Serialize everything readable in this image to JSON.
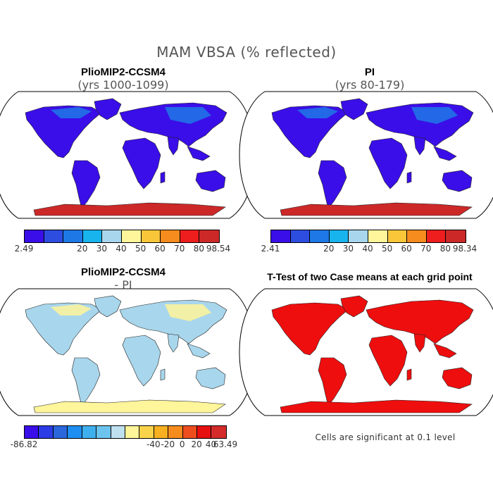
{
  "main_title": "MAM VBSA (% reflected)",
  "panels": {
    "top_left": {
      "title": "PlioMIP2-CCSM4",
      "subtitle": "(yrs 1000-1099)"
    },
    "top_right": {
      "title": "PI",
      "subtitle": "(yrs 80-179)"
    },
    "bottom_left": {
      "title": "PlioMIP2-CCSM4",
      "subtitle": "- PI"
    },
    "bottom_right": {
      "title": "T-Test of two Case means at each grid point",
      "footnote": "Cells are significant at 0.1 level"
    }
  },
  "colorbars": {
    "top_left": {
      "colors": [
        "#3a0ee8",
        "#2d4de0",
        "#1e78e6",
        "#18b4ee",
        "#a8d6ec",
        "#fff59a",
        "#f9c63a",
        "#f68c1e",
        "#ee1e1e",
        "#cc2828"
      ],
      "labels": [
        "2.49",
        "20",
        "30",
        "40",
        "50",
        "60",
        "70",
        "80",
        "98.54"
      ]
    },
    "top_right": {
      "colors": [
        "#3a0ee8",
        "#2d4de0",
        "#1e78e6",
        "#18b4ee",
        "#a8d6ec",
        "#fff59a",
        "#f9c63a",
        "#f68c1e",
        "#ee1e1e",
        "#cc2828"
      ],
      "labels": [
        "2.41",
        "20",
        "30",
        "40",
        "50",
        "60",
        "70",
        "80",
        "98.34"
      ]
    },
    "bottom_left": {
      "colors": [
        "#3a0ee8",
        "#2b3be6",
        "#2b66dc",
        "#1e8ef0",
        "#3fb0ee",
        "#6cc4ee",
        "#bfe0ee",
        "#fff59a",
        "#f9d44a",
        "#f8b020",
        "#f68c1e",
        "#ee4e1e",
        "#e61010",
        "#d42a2a"
      ],
      "labels": [
        "-86.82",
        "-40",
        "-20",
        "0",
        "20",
        "40",
        "63.49"
      ]
    }
  },
  "map_fills": {
    "top_left": {
      "land": "#3a0ee8",
      "antarctica": "#cc2828",
      "highlight": "#1e78e6"
    },
    "top_right": {
      "land": "#3a0ee8",
      "antarctica": "#cc2828",
      "highlight": "#1e78e6"
    },
    "bottom_left": {
      "land": "#a8d6ec",
      "antarctica": "#fff59a",
      "highlight": "#fff59a"
    },
    "bottom_right": {
      "land": "#ee0e0e",
      "antarctica": "#ee0e0e",
      "highlight": "#ee0e0e"
    }
  }
}
